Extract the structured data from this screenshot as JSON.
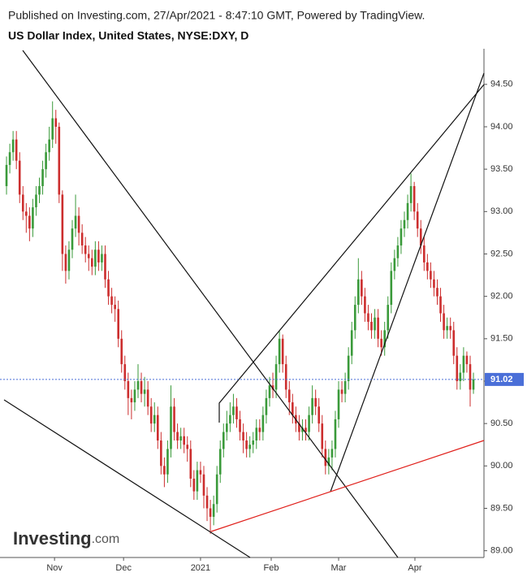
{
  "chart_data": {
    "type": "candlestick",
    "subtitle": "Published on Investing.com, 27/Apr/2021 - 8:47:10 GMT, Powered by TradingView.",
    "title": "US Dollar Index, United States, NYSE:DXY, D",
    "watermark": [
      "Investing",
      ".com"
    ],
    "up_color": "#3a9a3a",
    "down_color": "#cc2e2e",
    "last_price": 91.02,
    "last_price_color": "#4a6fd8",
    "ylim": [
      88.92,
      94.92
    ],
    "yticks": [
      {
        "value": 89,
        "label": "89.00"
      },
      {
        "value": 89.5,
        "label": "89.50"
      },
      {
        "value": 90,
        "label": "90.00"
      },
      {
        "value": 90.5,
        "label": "90.50"
      },
      {
        "value": 91,
        "label": "91.00"
      },
      {
        "value": 91.5,
        "label": "91.50"
      },
      {
        "value": 92,
        "label": "92.00"
      },
      {
        "value": 92.5,
        "label": "92.50"
      },
      {
        "value": 93,
        "label": "93.00"
      },
      {
        "value": 93.5,
        "label": "93.50"
      },
      {
        "value": 94,
        "label": "94.00"
      },
      {
        "value": 94.5,
        "label": "94.50"
      }
    ],
    "xlim": [
      -1.98,
      145.2
    ],
    "xticks": [
      {
        "value": 14.6,
        "label": "Nov"
      },
      {
        "value": 35.6,
        "label": "Dec"
      },
      {
        "value": 59,
        "label": "2021"
      },
      {
        "value": 80.5,
        "label": "Feb"
      },
      {
        "value": 101,
        "label": "Mar"
      },
      {
        "value": 124.2,
        "label": "Apr"
      }
    ],
    "open": [
      93.3,
      93.55,
      93.7,
      93.85,
      93.6,
      93.2,
      93.0,
      92.95,
      92.8,
      93.05,
      93.2,
      93.3,
      93.5,
      93.7,
      93.85,
      94.1,
      94.0,
      93.2,
      92.5,
      92.3,
      92.55,
      92.8,
      92.95,
      92.75,
      92.6,
      92.5,
      92.45,
      92.35,
      92.55,
      92.4,
      92.5,
      92.2,
      92.0,
      91.9,
      91.85,
      91.5,
      91.2,
      91.0,
      90.8,
      90.75,
      90.9,
      91.0,
      90.85,
      90.9,
      90.7,
      90.5,
      90.6,
      90.3,
      90.0,
      89.9,
      90.2,
      90.7,
      90.4,
      90.3,
      90.35,
      90.25,
      90.2,
      89.85,
      89.7,
      89.95,
      89.9,
      89.65,
      89.5,
      89.4,
      89.55,
      89.9,
      90.2,
      90.4,
      90.5,
      90.6,
      90.7,
      90.55,
      90.4,
      90.3,
      90.2,
      90.25,
      90.3,
      90.45,
      90.4,
      90.6,
      90.8,
      90.95,
      90.9,
      91.2,
      91.5,
      91.2,
      90.9,
      90.75,
      90.6,
      90.5,
      90.4,
      90.45,
      90.4,
      90.6,
      90.8,
      90.7,
      90.5,
      90.2,
      90.0,
      90.1,
      90.2,
      90.55,
      90.9,
      90.85,
      91.0,
      91.3,
      91.6,
      91.9,
      92.2,
      92.0,
      91.8,
      91.7,
      91.6,
      91.75,
      91.5,
      91.4,
      91.6,
      91.9,
      92.3,
      92.45,
      92.6,
      92.8,
      92.9,
      93.1,
      93.3,
      93.0,
      92.8,
      92.6,
      92.4,
      92.3,
      92.2,
      92.1,
      92.0,
      91.8,
      91.6,
      91.65,
      91.6,
      91.3,
      91.0,
      91.1,
      91.3,
      91.2,
      90.9
    ],
    "high": [
      93.65,
      93.8,
      93.95,
      93.95,
      93.7,
      93.3,
      93.1,
      93.05,
      93.15,
      93.3,
      93.4,
      93.6,
      93.8,
      94.0,
      94.3,
      94.2,
      94.05,
      93.25,
      92.6,
      92.65,
      92.9,
      93.2,
      93.05,
      92.85,
      92.7,
      92.6,
      92.55,
      92.65,
      92.65,
      92.6,
      92.6,
      92.3,
      92.1,
      92.0,
      91.95,
      91.6,
      91.3,
      91.1,
      90.9,
      91.0,
      91.2,
      91.1,
      91.05,
      91.0,
      90.8,
      90.75,
      90.7,
      90.4,
      90.1,
      90.3,
      90.95,
      90.8,
      90.5,
      90.45,
      90.45,
      90.35,
      90.3,
      89.95,
      90.05,
      90.05,
      90.0,
      89.75,
      89.6,
      89.65,
      90.0,
      90.3,
      90.5,
      90.65,
      90.75,
      90.85,
      90.8,
      90.65,
      90.5,
      90.4,
      90.35,
      90.4,
      90.55,
      90.55,
      90.7,
      90.9,
      91.05,
      91.1,
      91.3,
      91.6,
      91.55,
      91.3,
      91.0,
      90.85,
      90.7,
      90.6,
      90.55,
      90.55,
      90.7,
      90.95,
      90.9,
      90.8,
      90.6,
      90.3,
      90.2,
      90.3,
      90.65,
      91.0,
      91.0,
      91.1,
      91.4,
      91.7,
      92.0,
      92.45,
      92.3,
      92.1,
      91.9,
      91.8,
      91.85,
      91.85,
      91.6,
      91.7,
      92.0,
      92.4,
      92.55,
      92.7,
      92.9,
      93.0,
      93.2,
      93.45,
      93.35,
      93.1,
      92.9,
      92.7,
      92.5,
      92.4,
      92.3,
      92.2,
      92.1,
      91.9,
      91.75,
      91.75,
      91.7,
      91.4,
      91.2,
      91.4,
      91.35,
      91.3,
      91.1
    ],
    "low": [
      93.2,
      93.45,
      93.6,
      93.5,
      93.1,
      92.9,
      92.75,
      92.65,
      92.7,
      92.95,
      93.1,
      93.2,
      93.4,
      93.6,
      93.75,
      93.8,
      93.1,
      92.3,
      92.15,
      92.2,
      92.45,
      92.7,
      92.6,
      92.5,
      92.4,
      92.3,
      92.25,
      92.25,
      92.3,
      92.3,
      92.1,
      91.9,
      91.8,
      91.7,
      91.4,
      91.1,
      90.9,
      90.6,
      90.55,
      90.65,
      90.8,
      90.75,
      90.7,
      90.6,
      90.4,
      90.4,
      90.2,
      89.9,
      89.75,
      89.8,
      90.1,
      90.3,
      90.2,
      90.2,
      90.15,
      90.05,
      89.75,
      89.6,
      89.6,
      89.8,
      89.5,
      89.35,
      89.2,
      89.3,
      89.45,
      89.8,
      90.1,
      90.3,
      90.4,
      90.5,
      90.45,
      90.3,
      90.15,
      90.1,
      90.1,
      90.15,
      90.2,
      90.3,
      90.3,
      90.5,
      90.7,
      90.8,
      90.8,
      91.1,
      91.1,
      90.8,
      90.6,
      90.5,
      90.4,
      90.3,
      90.3,
      90.3,
      90.3,
      90.5,
      90.6,
      90.4,
      90.1,
      89.9,
      89.9,
      89.95,
      90.1,
      90.45,
      90.75,
      90.75,
      90.9,
      91.2,
      91.5,
      91.8,
      91.9,
      91.7,
      91.6,
      91.5,
      91.5,
      91.4,
      91.3,
      91.3,
      91.5,
      91.8,
      92.2,
      92.35,
      92.5,
      92.7,
      92.8,
      93.0,
      92.9,
      92.7,
      92.5,
      92.3,
      92.2,
      92.1,
      92.0,
      91.9,
      91.7,
      91.5,
      91.5,
      91.5,
      91.2,
      90.9,
      90.9,
      91.0,
      91.1,
      90.7,
      90.85
    ],
    "close": [
      93.55,
      93.7,
      93.85,
      93.6,
      93.2,
      93.0,
      92.95,
      92.8,
      93.05,
      93.2,
      93.3,
      93.5,
      93.7,
      93.85,
      94.1,
      94.0,
      93.2,
      92.5,
      92.3,
      92.55,
      92.8,
      92.95,
      92.75,
      92.6,
      92.5,
      92.45,
      92.35,
      92.55,
      92.4,
      92.5,
      92.2,
      92.0,
      91.9,
      91.85,
      91.5,
      91.2,
      91.0,
      90.8,
      90.75,
      90.9,
      91.0,
      90.85,
      90.9,
      90.7,
      90.5,
      90.6,
      90.3,
      90.0,
      89.9,
      90.2,
      90.7,
      90.4,
      90.3,
      90.35,
      90.25,
      90.2,
      89.85,
      89.7,
      89.95,
      89.9,
      89.65,
      89.5,
      89.4,
      89.55,
      89.9,
      90.2,
      90.4,
      90.5,
      90.6,
      90.7,
      90.55,
      90.4,
      90.3,
      90.2,
      90.25,
      90.3,
      90.45,
      90.4,
      90.6,
      90.8,
      90.95,
      90.9,
      91.2,
      91.5,
      91.2,
      90.9,
      90.75,
      90.6,
      90.5,
      90.4,
      90.45,
      90.4,
      90.6,
      90.8,
      90.7,
      90.5,
      90.2,
      90.0,
      90.1,
      90.2,
      90.55,
      90.9,
      90.85,
      91.0,
      91.3,
      91.6,
      91.9,
      92.2,
      92.0,
      91.8,
      91.7,
      91.6,
      91.75,
      91.5,
      91.4,
      91.6,
      91.9,
      92.3,
      92.45,
      92.6,
      92.8,
      92.9,
      93.1,
      93.3,
      93.0,
      92.8,
      92.6,
      92.4,
      92.3,
      92.2,
      92.1,
      92.0,
      91.8,
      91.6,
      91.65,
      91.6,
      91.3,
      91.0,
      91.1,
      91.3,
      91.2,
      90.9,
      91.02
    ]
  }
}
